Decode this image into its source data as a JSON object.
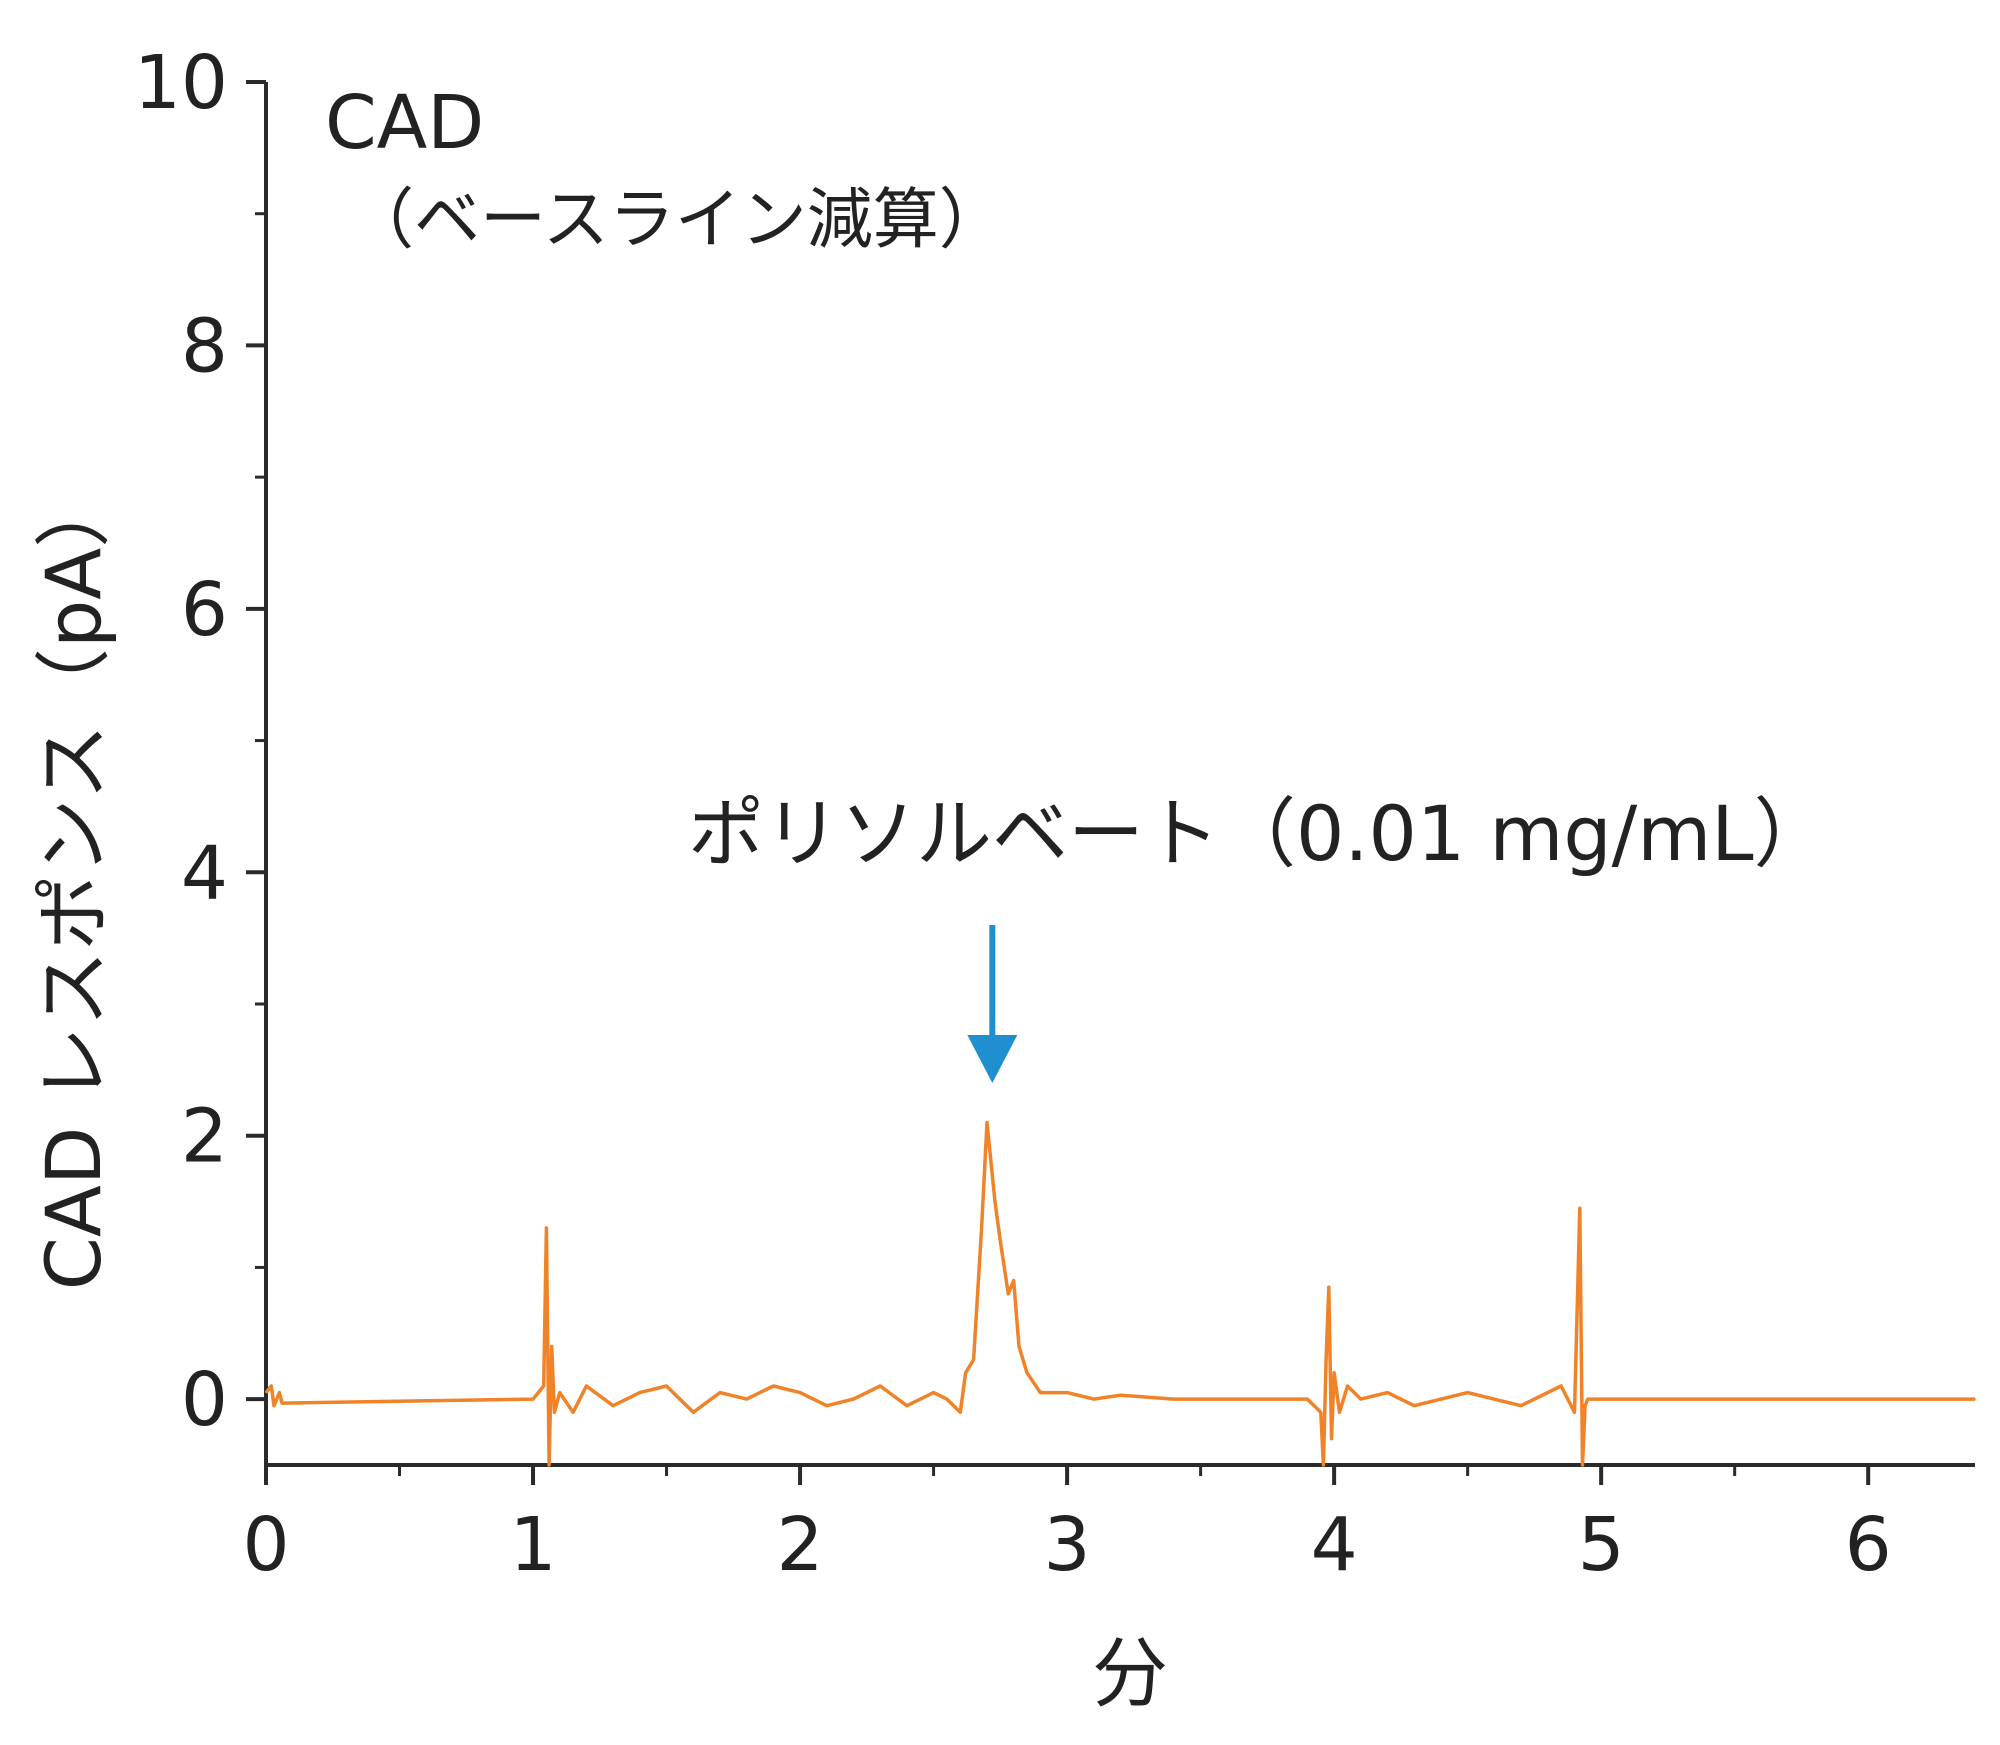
{
  "chart_data": {
    "type": "line",
    "title": "CAD",
    "subtitle": "（ベースライン減算）",
    "xlabel": "分",
    "ylabel": "CAD レスポンス（pA）",
    "xlim": [
      0,
      6.4
    ],
    "ylim": [
      -0.5,
      10
    ],
    "x_ticks": [
      0,
      1,
      2,
      3,
      4,
      5,
      6
    ],
    "y_ticks": [
      0,
      2,
      4,
      6,
      8,
      10
    ],
    "grid": false,
    "annotation": {
      "text": "ポリソルベート（0.01 mg/mL）",
      "arrow_x": 2.72,
      "arrow_y_start": 3.6,
      "arrow_y_end": 2.4,
      "arrow_color": "#1f8fcf"
    },
    "series": [
      {
        "color": "#f08228",
        "x": [
          0,
          0.02,
          0.03,
          0.05,
          0.06,
          1.0,
          1.04,
          1.05,
          1.06,
          1.07,
          1.08,
          1.1,
          1.15,
          1.2,
          1.3,
          1.4,
          1.5,
          1.6,
          1.7,
          1.8,
          1.9,
          2.0,
          2.1,
          2.2,
          2.3,
          2.4,
          2.5,
          2.55,
          2.6,
          2.62,
          2.65,
          2.68,
          2.7,
          2.72,
          2.73,
          2.75,
          2.78,
          2.8,
          2.82,
          2.85,
          2.9,
          3.0,
          3.1,
          3.2,
          3.4,
          3.6,
          3.8,
          3.9,
          3.95,
          3.96,
          3.97,
          3.98,
          3.99,
          4.0,
          4.02,
          4.05,
          4.1,
          4.2,
          4.3,
          4.5,
          4.7,
          4.85,
          4.9,
          4.92,
          4.93,
          4.94,
          4.95,
          5.0,
          5.5,
          6.0,
          6.4
        ],
        "y": [
          0.05,
          0.1,
          -0.05,
          0.05,
          -0.03,
          0,
          0.1,
          1.3,
          -0.5,
          0.4,
          -0.1,
          0.05,
          -0.1,
          0.1,
          -0.05,
          0.05,
          0.1,
          -0.1,
          0.05,
          0.0,
          0.1,
          0.05,
          -0.05,
          0.0,
          0.1,
          -0.05,
          0.05,
          0.0,
          -0.1,
          0.2,
          0.3,
          1.3,
          2.1,
          1.7,
          1.5,
          1.2,
          0.8,
          0.9,
          0.4,
          0.2,
          0.05,
          0.05,
          0.0,
          0.03,
          0.0,
          0.0,
          0.0,
          0.0,
          -0.1,
          -0.5,
          0.3,
          0.85,
          -0.3,
          0.2,
          -0.1,
          0.1,
          0.0,
          0.05,
          -0.05,
          0.05,
          -0.05,
          0.1,
          -0.1,
          1.45,
          -0.5,
          -0.05,
          0.0,
          0.0,
          0.0,
          0.0,
          0.0
        ]
      }
    ]
  }
}
